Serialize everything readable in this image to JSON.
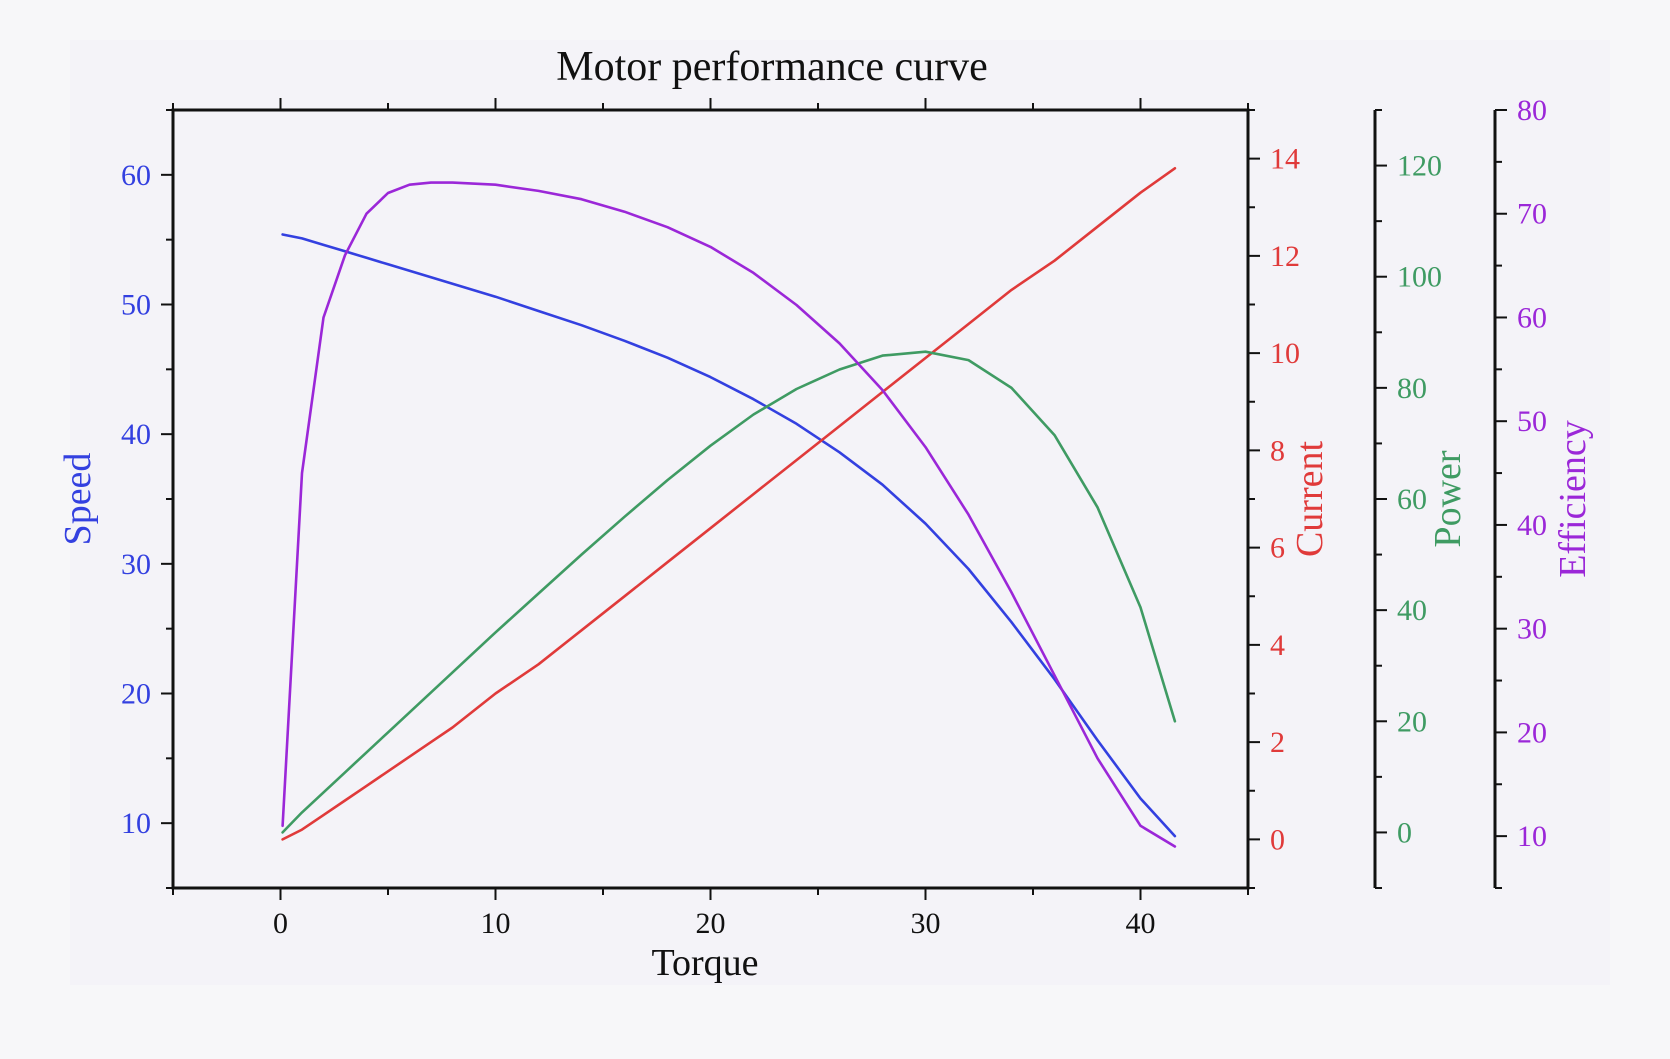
{
  "colors": {
    "speed": "#3340e0",
    "current": "#e03a3a",
    "power": "#3f9b63",
    "efficiency": "#9b27d8",
    "axis": "#111111"
  },
  "chart_data": {
    "type": "line",
    "title": "Motor performance curve",
    "xlabel": "Torque",
    "xlim": [
      -5,
      45
    ],
    "xticks": [
      0,
      10,
      20,
      30,
      40
    ],
    "grid": false,
    "axes": [
      {
        "key": "speed",
        "label": "Speed",
        "side": "left",
        "lim": [
          5,
          65
        ],
        "ticks": [
          10,
          20,
          30,
          40,
          50,
          60
        ]
      },
      {
        "key": "current",
        "label": "Current",
        "side": "right",
        "lim": [
          -1,
          15
        ],
        "ticks": [
          0,
          2,
          4,
          6,
          8,
          10,
          12,
          14
        ]
      },
      {
        "key": "power",
        "label": "Power",
        "side": "right",
        "lim": [
          -10,
          130
        ],
        "ticks": [
          0,
          20,
          40,
          60,
          80,
          100,
          120
        ]
      },
      {
        "key": "efficiency",
        "label": "Efficiency",
        "side": "right",
        "lim": [
          5,
          80
        ],
        "ticks": [
          10,
          20,
          30,
          40,
          50,
          60,
          70,
          80
        ]
      }
    ],
    "x": [
      0.1,
      1,
      2,
      3,
      4,
      5,
      6,
      7,
      8,
      10,
      12,
      14,
      16,
      18,
      20,
      22,
      24,
      26,
      28,
      30,
      32,
      34,
      36,
      38,
      40,
      41.6
    ],
    "series": [
      {
        "key": "speed",
        "axis": "speed",
        "values": [
          55.4,
          55.1,
          54.6,
          54.1,
          53.6,
          53.1,
          52.6,
          52.1,
          51.6,
          50.6,
          49.5,
          48.4,
          47.2,
          45.9,
          44.4,
          42.7,
          40.8,
          38.6,
          36.1,
          33.1,
          29.6,
          25.5,
          21.1,
          16.4,
          11.9,
          9.0
        ]
      },
      {
        "key": "current",
        "axis": "current",
        "values": [
          0.0,
          0.2,
          0.5,
          0.8,
          1.1,
          1.4,
          1.7,
          2.0,
          2.3,
          3.0,
          3.6,
          4.3,
          5.0,
          5.7,
          6.4,
          7.1,
          7.8,
          8.5,
          9.2,
          9.9,
          10.6,
          11.3,
          11.9,
          12.6,
          13.3,
          13.8
        ]
      },
      {
        "key": "power",
        "axis": "power",
        "values": [
          0.0,
          3.6,
          7.2,
          10.8,
          14.4,
          18.0,
          21.6,
          25.2,
          28.8,
          36.0,
          43.0,
          50.0,
          56.8,
          63.4,
          69.6,
          75.2,
          79.8,
          83.3,
          85.8,
          86.5,
          85.0,
          80.0,
          71.5,
          58.5,
          40.5,
          20.0
        ]
      },
      {
        "key": "efficiency",
        "axis": "efficiency",
        "values": [
          11,
          45,
          60,
          66,
          70,
          72,
          72.8,
          73,
          73,
          72.8,
          72.2,
          71.4,
          70.2,
          68.7,
          66.8,
          64.3,
          61.2,
          57.5,
          53.0,
          47.5,
          41.0,
          33.5,
          25.5,
          17.5,
          11.0,
          9.0
        ]
      }
    ]
  }
}
